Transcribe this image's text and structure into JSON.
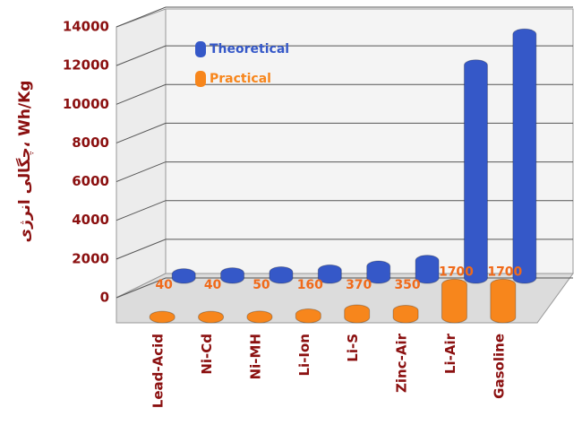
{
  "chart_data": {
    "type": "bar",
    "y_axis_label": "چگالی انرژی، Wh/Kg",
    "categories": [
      "Lead-Acid",
      "Ni-Cd",
      "Ni-MH",
      "Li-Ion",
      "Li-S",
      "Zinc-Air",
      "Li-Air",
      "Gasoline"
    ],
    "series": [
      {
        "name": "Theoretical",
        "color": "#3558c8",
        "values": [
          200,
          250,
          300,
          400,
          600,
          900,
          11000,
          12600
        ]
      },
      {
        "name": "Practical",
        "color": "#f7861c",
        "values": [
          40,
          40,
          50,
          160,
          370,
          350,
          1700,
          1700
        ]
      }
    ],
    "ylim": [
      0,
      14000
    ],
    "yticks": [
      0,
      2000,
      4000,
      6000,
      8000,
      10000,
      12000,
      14000
    ],
    "grid": true,
    "legend": "top-left"
  }
}
